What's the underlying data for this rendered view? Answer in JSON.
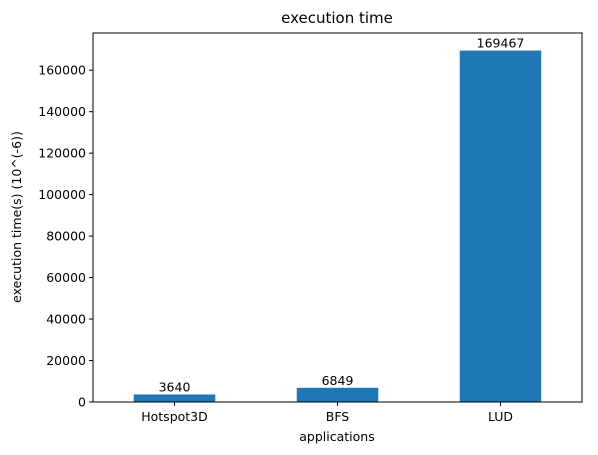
{
  "chart_data": {
    "type": "bar",
    "title": "execution time",
    "xlabel": "applications",
    "ylabel": "execution time(s) (10^(-6))",
    "categories": [
      "Hotspot3D",
      "BFS",
      "LUD"
    ],
    "values": [
      3640,
      6849,
      169467
    ],
    "data_labels": [
      "3640",
      "6849",
      "169467"
    ],
    "ylim": [
      0,
      177940
    ],
    "yticks": [
      0,
      20000,
      40000,
      60000,
      80000,
      100000,
      120000,
      140000,
      160000
    ],
    "ytick_labels": [
      "0",
      "20000",
      "40000",
      "60000",
      "80000",
      "100000",
      "120000",
      "140000",
      "160000"
    ],
    "grid": false,
    "legend": "none",
    "bar_color": "#1f77b4"
  }
}
